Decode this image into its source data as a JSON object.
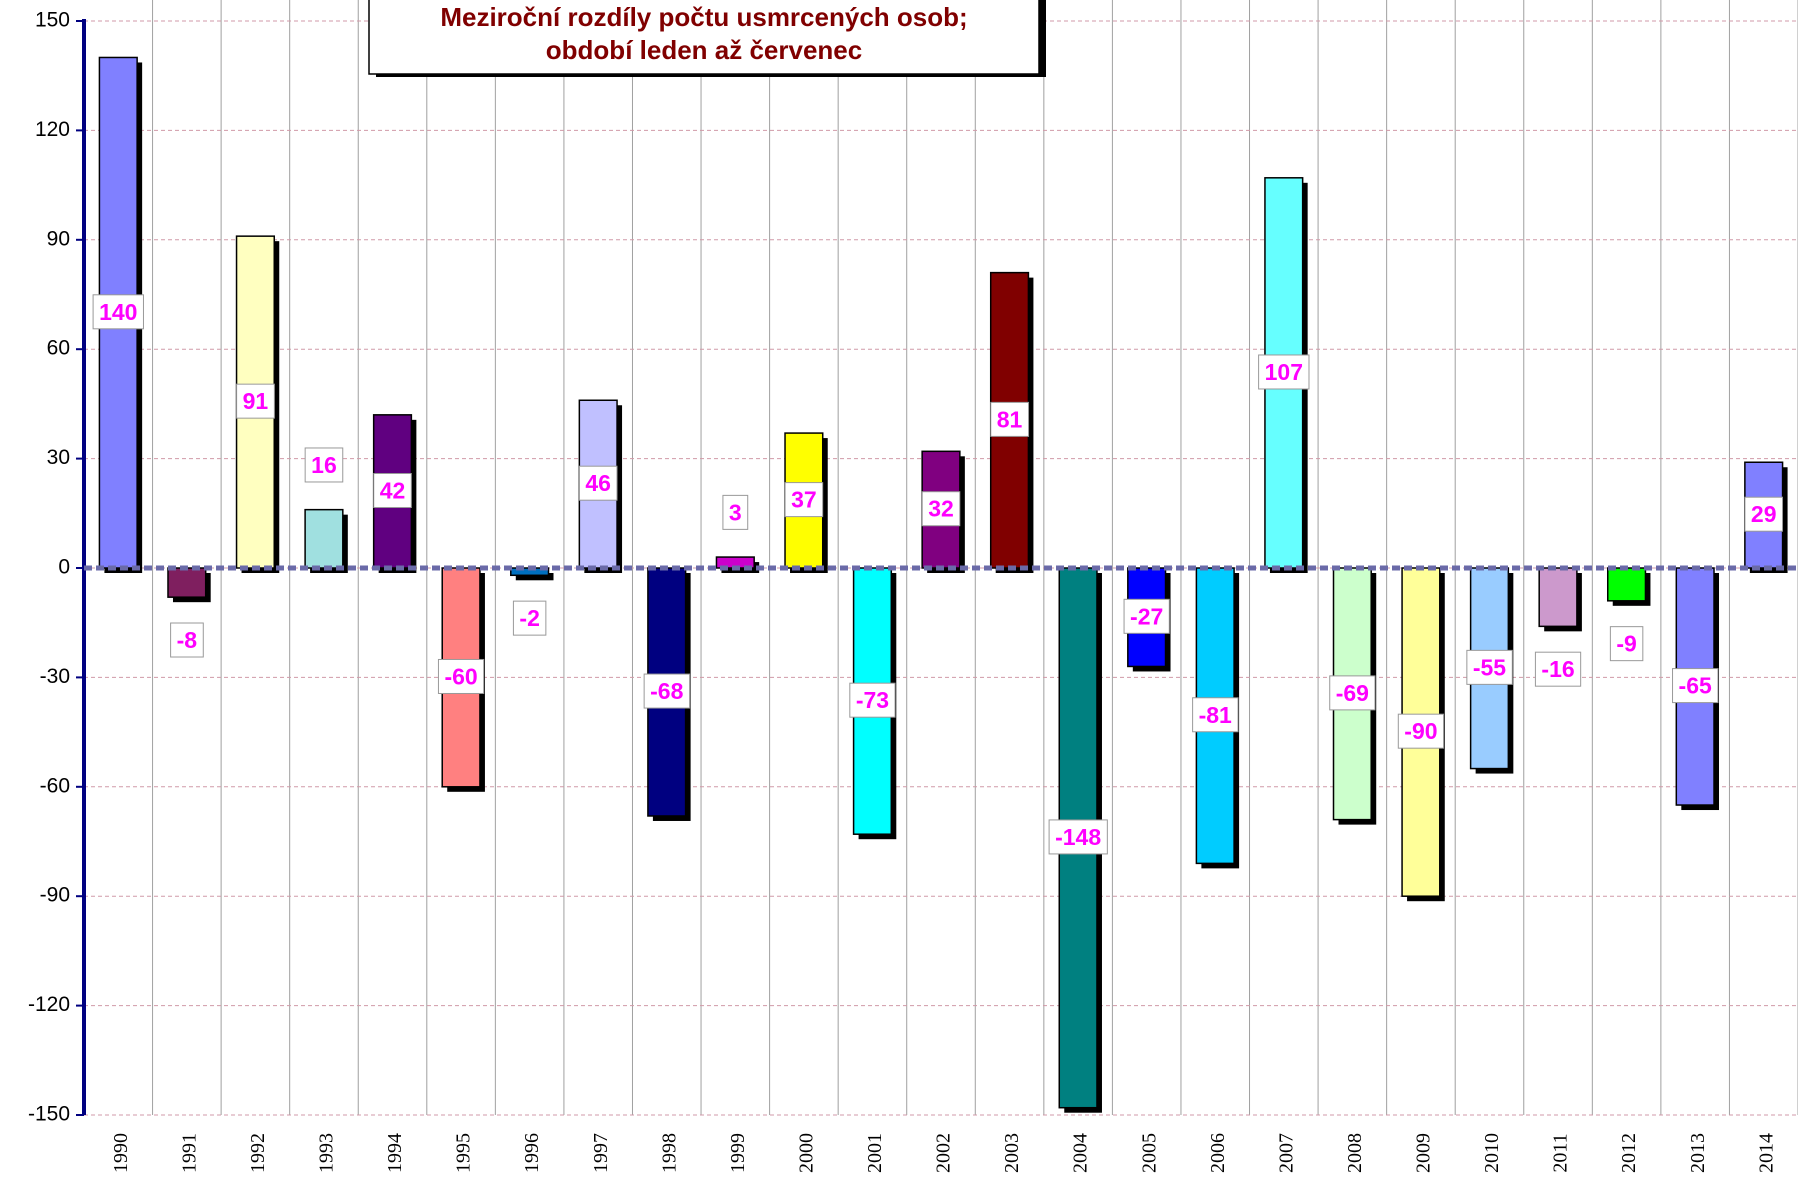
{
  "chart_data": {
    "type": "bar",
    "title": [
      "Meziroční rozdíly počtu usmrcených osob;",
      "období leden až červenec"
    ],
    "categories": [
      "1990",
      "1991",
      "1992",
      "1993",
      "1994",
      "1995",
      "1996",
      "1997",
      "1998",
      "1999",
      "2000",
      "2001",
      "2002",
      "2003",
      "2004",
      "2005",
      "2006",
      "2007",
      "2008",
      "2009",
      "2010",
      "2011",
      "2012",
      "2013",
      "2014"
    ],
    "values": [
      140,
      -8,
      91,
      16,
      42,
      -60,
      -2,
      46,
      -68,
      3,
      37,
      -73,
      32,
      81,
      -148,
      -27,
      -81,
      107,
      -69,
      -90,
      -55,
      -16,
      -9,
      -65,
      29
    ],
    "colors": [
      "#8080ff",
      "#7f1f5f",
      "#ffffc0",
      "#a0e0e0",
      "#600080",
      "#ff8080",
      "#0070c0",
      "#c0c0ff",
      "#000080",
      "#cc00cc",
      "#ffff00",
      "#00ffff",
      "#800080",
      "#800000",
      "#008080",
      "#0000ff",
      "#00ccff",
      "#66ffff",
      "#ccffcc",
      "#ffff99",
      "#99ccff",
      "#cc99cc",
      "#00ff00",
      "#8080ff",
      "#8080ff"
    ],
    "ylim": [
      -150,
      150
    ],
    "yticks": [
      -150,
      -120,
      -90,
      -60,
      -30,
      0,
      30,
      60,
      90,
      120,
      150
    ],
    "grid": true
  }
}
